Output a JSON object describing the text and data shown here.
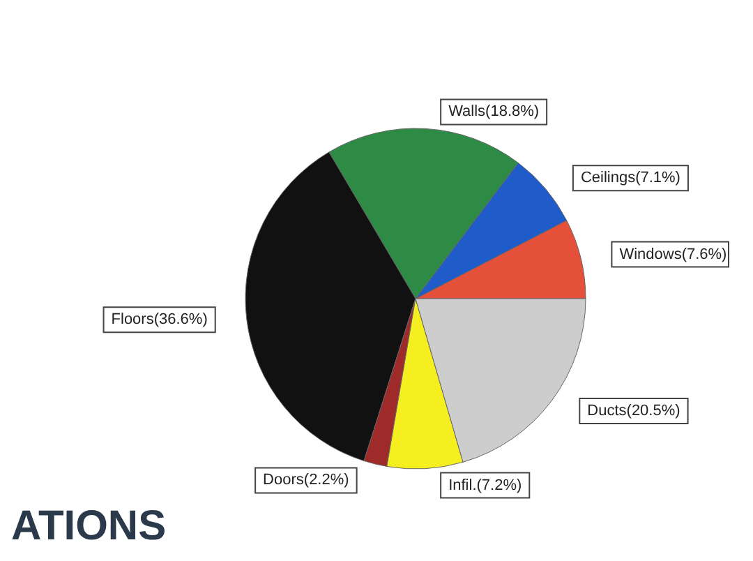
{
  "chart_data": {
    "type": "pie",
    "categories": [
      "Windows",
      "Ceilings",
      "Walls",
      "Floors",
      "Doors",
      "Infil.",
      "Ducts"
    ],
    "values": [
      7.6,
      7.1,
      18.8,
      36.6,
      2.2,
      7.2,
      20.5
    ],
    "value_labels": [
      "(7.6%)",
      "(7.1%)",
      "(18.8%)",
      "(36.6%)",
      "(2.2%)",
      "(7.2%)",
      "(20.5%)"
    ],
    "colors": [
      "#e5503a",
      "#1f5cc9",
      "#2e8b46",
      "#111111",
      "#9e2a2a",
      "#f6ef1f",
      "#cdcdcd"
    ],
    "annotations": [
      "ATIONS"
    ],
    "legend": false
  }
}
